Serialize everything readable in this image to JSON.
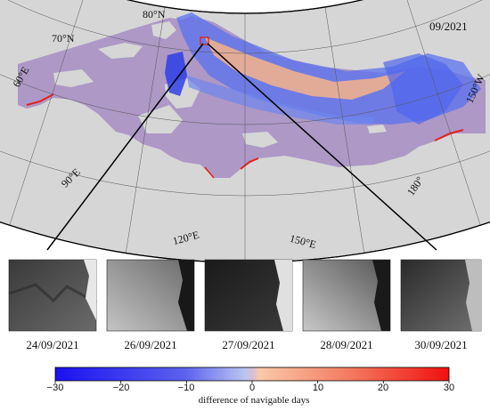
{
  "map": {
    "date_stamp": "09/2021",
    "lat_labels": [
      "80°N",
      "70°N"
    ],
    "lon_labels": [
      "60°E",
      "90°E",
      "120°E",
      "150°E",
      "180°",
      "150°W"
    ],
    "colors": {
      "land": "#d6d6d6",
      "ocean": "#ad98c6",
      "inset_box": "#e0201a"
    }
  },
  "thumbnails": {
    "dates": [
      "24/09/2021",
      "26/09/2021",
      "27/09/2021",
      "28/09/2021",
      "30/09/2021"
    ]
  },
  "colorbar": {
    "title": "difference of navigable days",
    "min": -30,
    "max": 30,
    "ticks": [
      "−30",
      "−20",
      "−10",
      "0",
      "10",
      "20",
      "30"
    ],
    "colors": {
      "low": "#1a10f0",
      "mid_low": "#8aa0ee",
      "mid": "#d8b8d8",
      "mid_high": "#f8b088",
      "high": "#f01010"
    }
  }
}
